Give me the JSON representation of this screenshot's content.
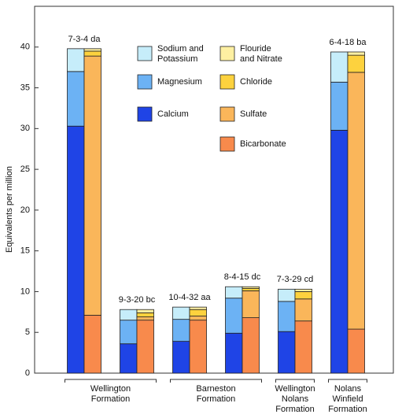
{
  "chart_data": {
    "type": "stacked-bar-pairs",
    "y_label": "Equivalents per million",
    "categories": [
      "7-3-4 da",
      "9-3-20 bc",
      "10-4-32 aa",
      "8-4-15 dc",
      "7-3-29 cd",
      "6-4-18 ba"
    ],
    "ylim": [
      0,
      45
    ],
    "yticks": [
      0,
      5,
      10,
      15,
      20,
      25,
      30,
      35,
      40
    ],
    "series": [
      {
        "name": "Calcium",
        "color": "#1f44e6",
        "stack": 0,
        "values": [
          30.3,
          3.6,
          3.9,
          4.9,
          5.1,
          29.8
        ]
      },
      {
        "name": "Magnesium",
        "color": "#6cb2f4",
        "stack": 0,
        "values": [
          6.7,
          2.9,
          2.7,
          4.3,
          3.7,
          5.9
        ]
      },
      {
        "name": "Sodium and\nPotassium",
        "color": "#c6edfa",
        "stack": 0,
        "values": [
          2.8,
          1.3,
          1.5,
          1.4,
          1.5,
          3.7
        ]
      },
      {
        "name": "Bicarbonate",
        "color": "#f88a4c",
        "stack": 1,
        "values": [
          7.1,
          6.5,
          6.5,
          6.8,
          6.4,
          5.4
        ]
      },
      {
        "name": "Sulfate",
        "color": "#fab65a",
        "stack": 1,
        "values": [
          31.8,
          0.4,
          0.5,
          3.3,
          2.7,
          31.5
        ]
      },
      {
        "name": "Chloride",
        "color": "#fdd23e",
        "stack": 1,
        "values": [
          0.6,
          0.5,
          0.8,
          0.3,
          0.9,
          2.1
        ]
      },
      {
        "name": "Flouride\nand Nitrate",
        "color": "#fef0a2",
        "stack": 1,
        "values": [
          0.3,
          0.4,
          0.3,
          0.2,
          0.3,
          0.4
        ]
      }
    ],
    "formations": [
      {
        "label": "Wellington\nFormation",
        "first": 0,
        "last": 1
      },
      {
        "label": "Barneston\nFormation",
        "first": 2,
        "last": 3
      },
      {
        "label": "Wellington\nNolans\nFormation",
        "first": 4,
        "last": 4
      },
      {
        "label": "Nolans\nWinfield\nFormation",
        "first": 5,
        "last": 5
      }
    ]
  }
}
